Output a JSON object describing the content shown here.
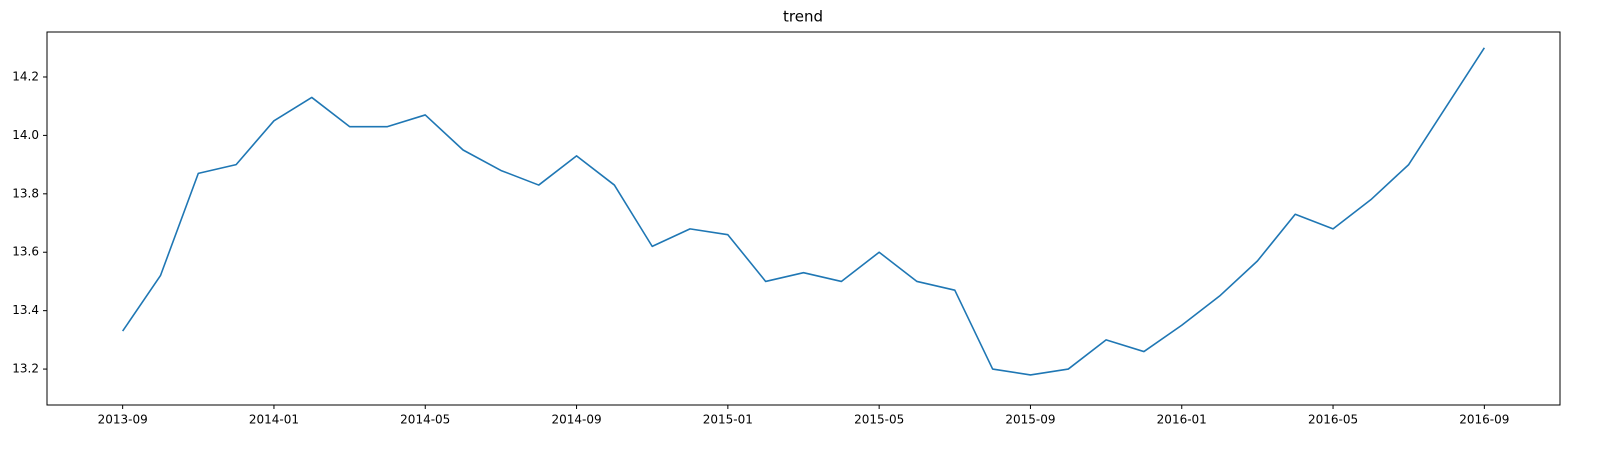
{
  "chart_data": {
    "type": "line",
    "title": "trend",
    "x": [
      "2013-09",
      "2013-10",
      "2013-11",
      "2013-12",
      "2014-01",
      "2014-02",
      "2014-03",
      "2014-04",
      "2014-05",
      "2014-06",
      "2014-07",
      "2014-08",
      "2014-09",
      "2014-10",
      "2014-11",
      "2014-12",
      "2015-01",
      "2015-02",
      "2015-03",
      "2015-04",
      "2015-05",
      "2015-06",
      "2015-07",
      "2015-08",
      "2015-09",
      "2015-10",
      "2015-11",
      "2015-12",
      "2016-01",
      "2016-02",
      "2016-03",
      "2016-04",
      "2016-05",
      "2016-06",
      "2016-07",
      "2016-08",
      "2016-09"
    ],
    "values": [
      13.33,
      13.52,
      13.87,
      13.9,
      14.05,
      14.13,
      14.03,
      14.03,
      14.07,
      13.95,
      13.88,
      13.83,
      13.93,
      13.83,
      13.62,
      13.68,
      13.66,
      13.5,
      13.53,
      13.5,
      13.6,
      13.5,
      13.47,
      13.2,
      13.18,
      13.2,
      13.3,
      13.26,
      13.35,
      13.45,
      13.57,
      13.73,
      13.68,
      13.78,
      13.9,
      14.1,
      14.3
    ],
    "color": "#1f77b4",
    "xlim": [
      "2013-07",
      "2016-11"
    ],
    "xticks": [
      "2013-09",
      "2014-01",
      "2014-05",
      "2014-09",
      "2015-01",
      "2015-05",
      "2015-09",
      "2016-01",
      "2016-05",
      "2016-09"
    ],
    "ylim": [
      13.077,
      14.354
    ],
    "yticks": [
      13.2,
      13.4,
      13.6,
      13.8,
      {
        "value": 14,
        "label": "14.0"
      },
      14.2
    ]
  }
}
